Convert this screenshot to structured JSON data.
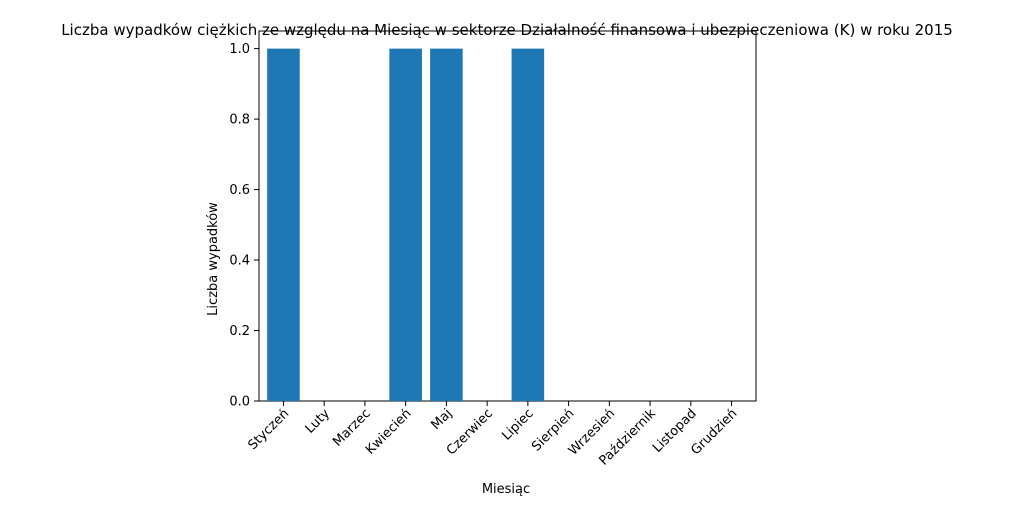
{
  "chart_data": {
    "type": "bar",
    "title": "Liczba wypadków ciężkich ze względu na Miesiąc w sektorze Działalność finansowa i ubezpieczeniowa (K) w roku 2015",
    "xlabel": "Miesiąc",
    "ylabel": "Liczba wypadków",
    "categories": [
      "Styczeń",
      "Luty",
      "Marzec",
      "Kwiecień",
      "Maj",
      "Czerwiec",
      "Lipiec",
      "Sierpień",
      "Wrzesień",
      "Październik",
      "Listopad",
      "Grudzień"
    ],
    "values": [
      1,
      0,
      0,
      1,
      1,
      0,
      1,
      0,
      0,
      0,
      0,
      0
    ],
    "ylim": [
      0,
      1.05
    ],
    "yticks": [
      "0.0",
      "0.2",
      "0.4",
      "0.6",
      "0.8",
      "1.0"
    ],
    "bar_color": "#1f77b4",
    "grid": false,
    "legend": "none"
  }
}
